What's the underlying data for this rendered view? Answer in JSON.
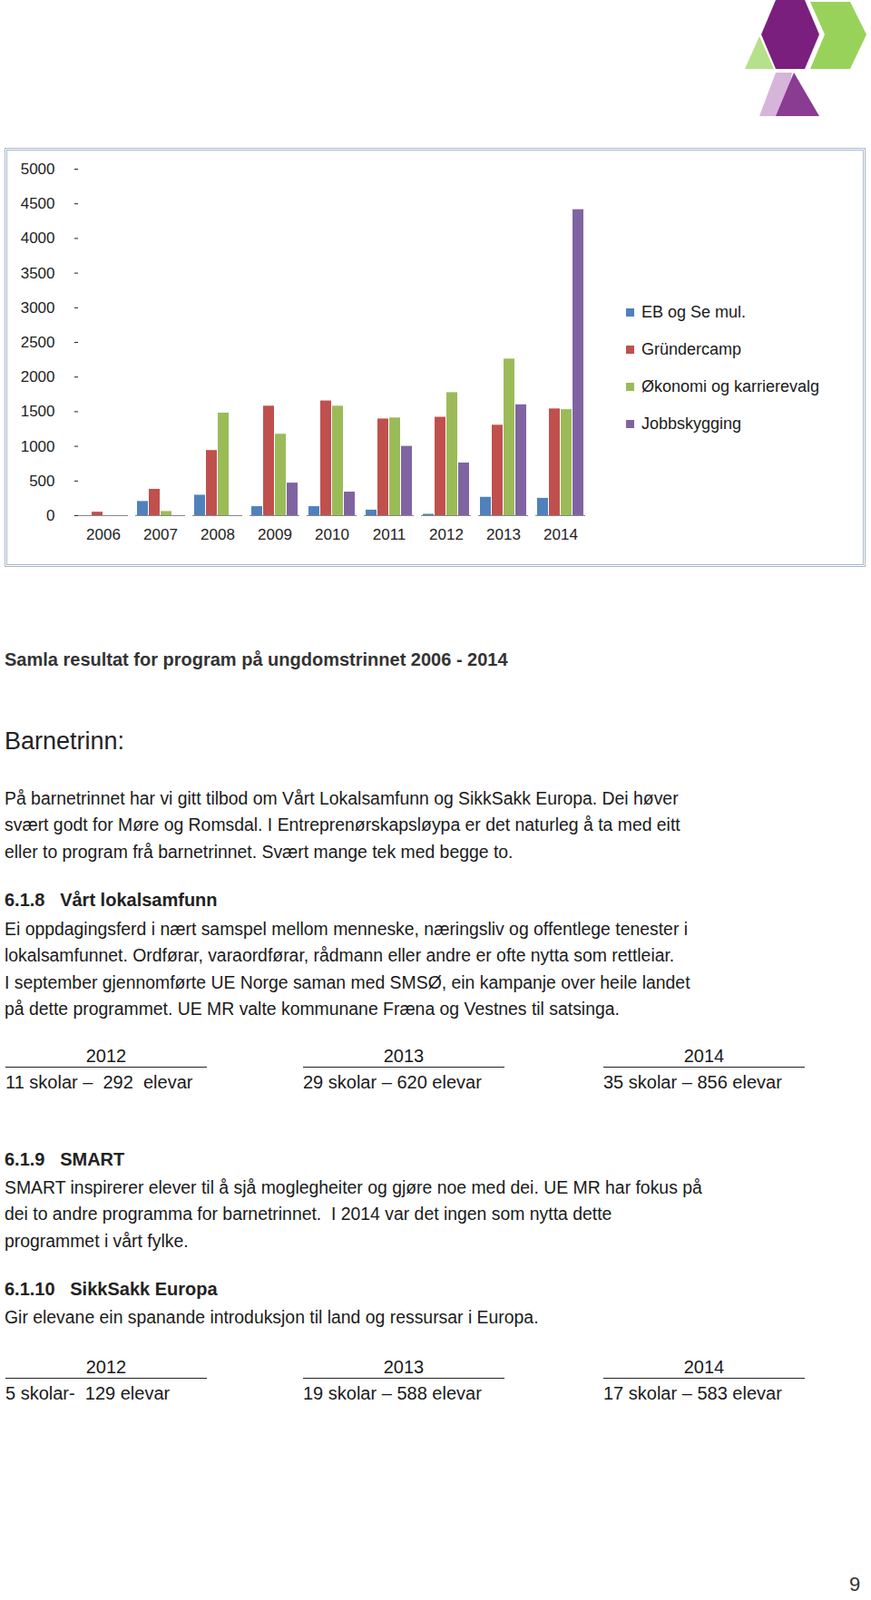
{
  "chart_data": {
    "type": "bar",
    "categories": [
      "2006",
      "2007",
      "2008",
      "2009",
      "2010",
      "2011",
      "2012",
      "2013",
      "2014"
    ],
    "series": [
      {
        "name": "EB og Se mul.",
        "color": "#4f81bd",
        "values": [
          0,
          205,
          295,
          130,
          130,
          80,
          20,
          265,
          250
        ]
      },
      {
        "name": "Gründercamp",
        "color": "#c0504d",
        "values": [
          50,
          380,
          940,
          1580,
          1655,
          1395,
          1420,
          1305,
          1540
        ]
      },
      {
        "name": "Økonomi og karrierevalg",
        "color": "#9bbb59",
        "values": [
          0,
          60,
          1480,
          1175,
          1580,
          1410,
          1775,
          2260,
          1530
        ]
      },
      {
        "name": "Jobbskygging",
        "color": "#8064a2",
        "values": [
          0,
          0,
          0,
          470,
          340,
          1000,
          760,
          1600,
          4415
        ]
      }
    ],
    "ylim": [
      0,
      5000
    ],
    "yticks": [
      0,
      500,
      1000,
      1500,
      2000,
      2500,
      3000,
      3500,
      4000,
      4500,
      5000
    ],
    "grid": false,
    "legend": "right"
  },
  "document": {
    "caption": "Samla resultat for program på ungdomstrinnet 2006 - 2014",
    "heading": "Barnetrinn:",
    "intro": [
      "På barnetrinnet har vi gitt tilbod om Vårt Lokalsamfunn og SikkSakk Europa. Dei høver",
      "svært godt for Møre og Romsdal. I Entreprenørskapsløypa er det naturleg å ta med eitt",
      "eller to program frå barnetrinnet. Svært mange tek med begge to."
    ],
    "sections": [
      {
        "number": "6.1.8",
        "title": "Vårt lokalsamfunn",
        "text": [
          "Ei oppdagingsferd i nært samspel mellom menneske, næringsliv og offentlege tenester i",
          "lokalsamfunnet. Ordførar, varaordførar, rådmann eller andre er ofte nytta som rettleiar.",
          "I september gjennomførte UE Norge saman med SMSØ, ein kampanje over heile landet",
          "på dette programmet. UE MR valte kommunane Fræna og Vestnes til satsinga."
        ],
        "stats": [
          {
            "year": "2012",
            "text": "11 skolar –  292  elevar"
          },
          {
            "year": "2013",
            "text": "29 skolar – 620 elevar"
          },
          {
            "year": "2014",
            "text": "35 skolar – 856 elevar"
          }
        ]
      },
      {
        "number": "6.1.9",
        "title": "SMART",
        "text": [
          "SMART inspirerer elever til å sjå moglegheiter og gjøre noe med dei. UE MR har fokus på",
          "dei to andre programma for barnetrinnet.  I 2014 var det ingen som nytta dette",
          "programmet i vårt fylke."
        ],
        "stats": []
      },
      {
        "number": "6.1.10",
        "title": "SikkSakk Europa",
        "text": [
          "Gir elevane ein spanande introduksjon til land og ressursar i Europa."
        ],
        "stats": [
          {
            "year": "2012",
            "text": "5 skolar-  129 elevar"
          },
          {
            "year": "2013",
            "text": "19 skolar – 588 elevar"
          },
          {
            "year": "2014",
            "text": "17 skolar – 583 elevar"
          }
        ]
      }
    ],
    "page_number": "9"
  }
}
